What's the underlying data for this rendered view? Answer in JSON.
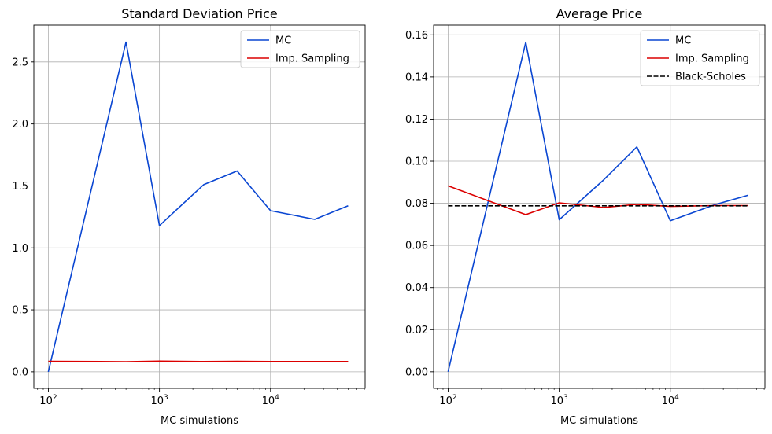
{
  "chart_data": [
    {
      "type": "line",
      "title": "Standard Deviation Price",
      "xlabel": "MC simulations",
      "ylabel": "",
      "xscale": "log",
      "x": [
        100,
        500,
        1000,
        2500,
        5000,
        10000,
        25000,
        50000
      ],
      "xticks": [
        100,
        1000,
        10000
      ],
      "xtick_labels": [
        {
          "base": "10",
          "exp": "2"
        },
        {
          "base": "10",
          "exp": "3"
        },
        {
          "base": "10",
          "exp": "4"
        }
      ],
      "ylim": [
        -0.134,
        2.797
      ],
      "yticks": [
        0.0,
        0.5,
        1.0,
        1.5,
        2.0,
        2.5
      ],
      "ytick_labels": [
        "0.0",
        "0.5",
        "1.0",
        "1.5",
        "2.0",
        "2.5"
      ],
      "grid": true,
      "legend": "top-right",
      "series": [
        {
          "name": "MC",
          "color": "#0a46d2",
          "dash": "solid",
          "values": [
            0.0,
            2.66,
            1.18,
            1.51,
            1.62,
            1.3,
            1.23,
            1.34
          ]
        },
        {
          "name": "Imp. Sampling",
          "color": "#dc0000",
          "dash": "solid",
          "values": [
            0.085,
            0.082,
            0.086,
            0.083,
            0.084,
            0.083,
            0.083,
            0.083
          ]
        }
      ]
    },
    {
      "type": "line",
      "title": "Average Price",
      "xlabel": "MC simulations",
      "ylabel": "",
      "xscale": "log",
      "x": [
        100,
        500,
        1000,
        2500,
        5000,
        10000,
        25000,
        50000
      ],
      "xticks": [
        100,
        1000,
        10000
      ],
      "xtick_labels": [
        {
          "base": "10",
          "exp": "2"
        },
        {
          "base": "10",
          "exp": "3"
        },
        {
          "base": "10",
          "exp": "4"
        }
      ],
      "ylim": [
        -0.0079,
        0.1646
      ],
      "yticks": [
        0.0,
        0.02,
        0.04,
        0.06,
        0.08,
        0.1,
        0.12,
        0.14,
        0.16
      ],
      "ytick_labels": [
        "0.00",
        "0.02",
        "0.04",
        "0.06",
        "0.08",
        "0.10",
        "0.12",
        "0.14",
        "0.16"
      ],
      "grid": true,
      "legend": "top-right",
      "series": [
        {
          "name": "MC",
          "color": "#0a46d2",
          "dash": "solid",
          "values": [
            0.0,
            0.1565,
            0.0722,
            0.091,
            0.1068,
            0.0717,
            0.0793,
            0.0838
          ]
        },
        {
          "name": "Imp. Sampling",
          "color": "#dc0000",
          "dash": "solid",
          "values": [
            0.0883,
            0.0746,
            0.0802,
            0.078,
            0.0795,
            0.0785,
            0.0789,
            0.0789
          ]
        },
        {
          "name": "Black-Scholes",
          "color": "#000000",
          "dash": "dashed",
          "values": [
            0.0788,
            0.0788,
            0.0788,
            0.0788,
            0.0788,
            0.0788,
            0.0788,
            0.0788
          ]
        }
      ]
    }
  ]
}
